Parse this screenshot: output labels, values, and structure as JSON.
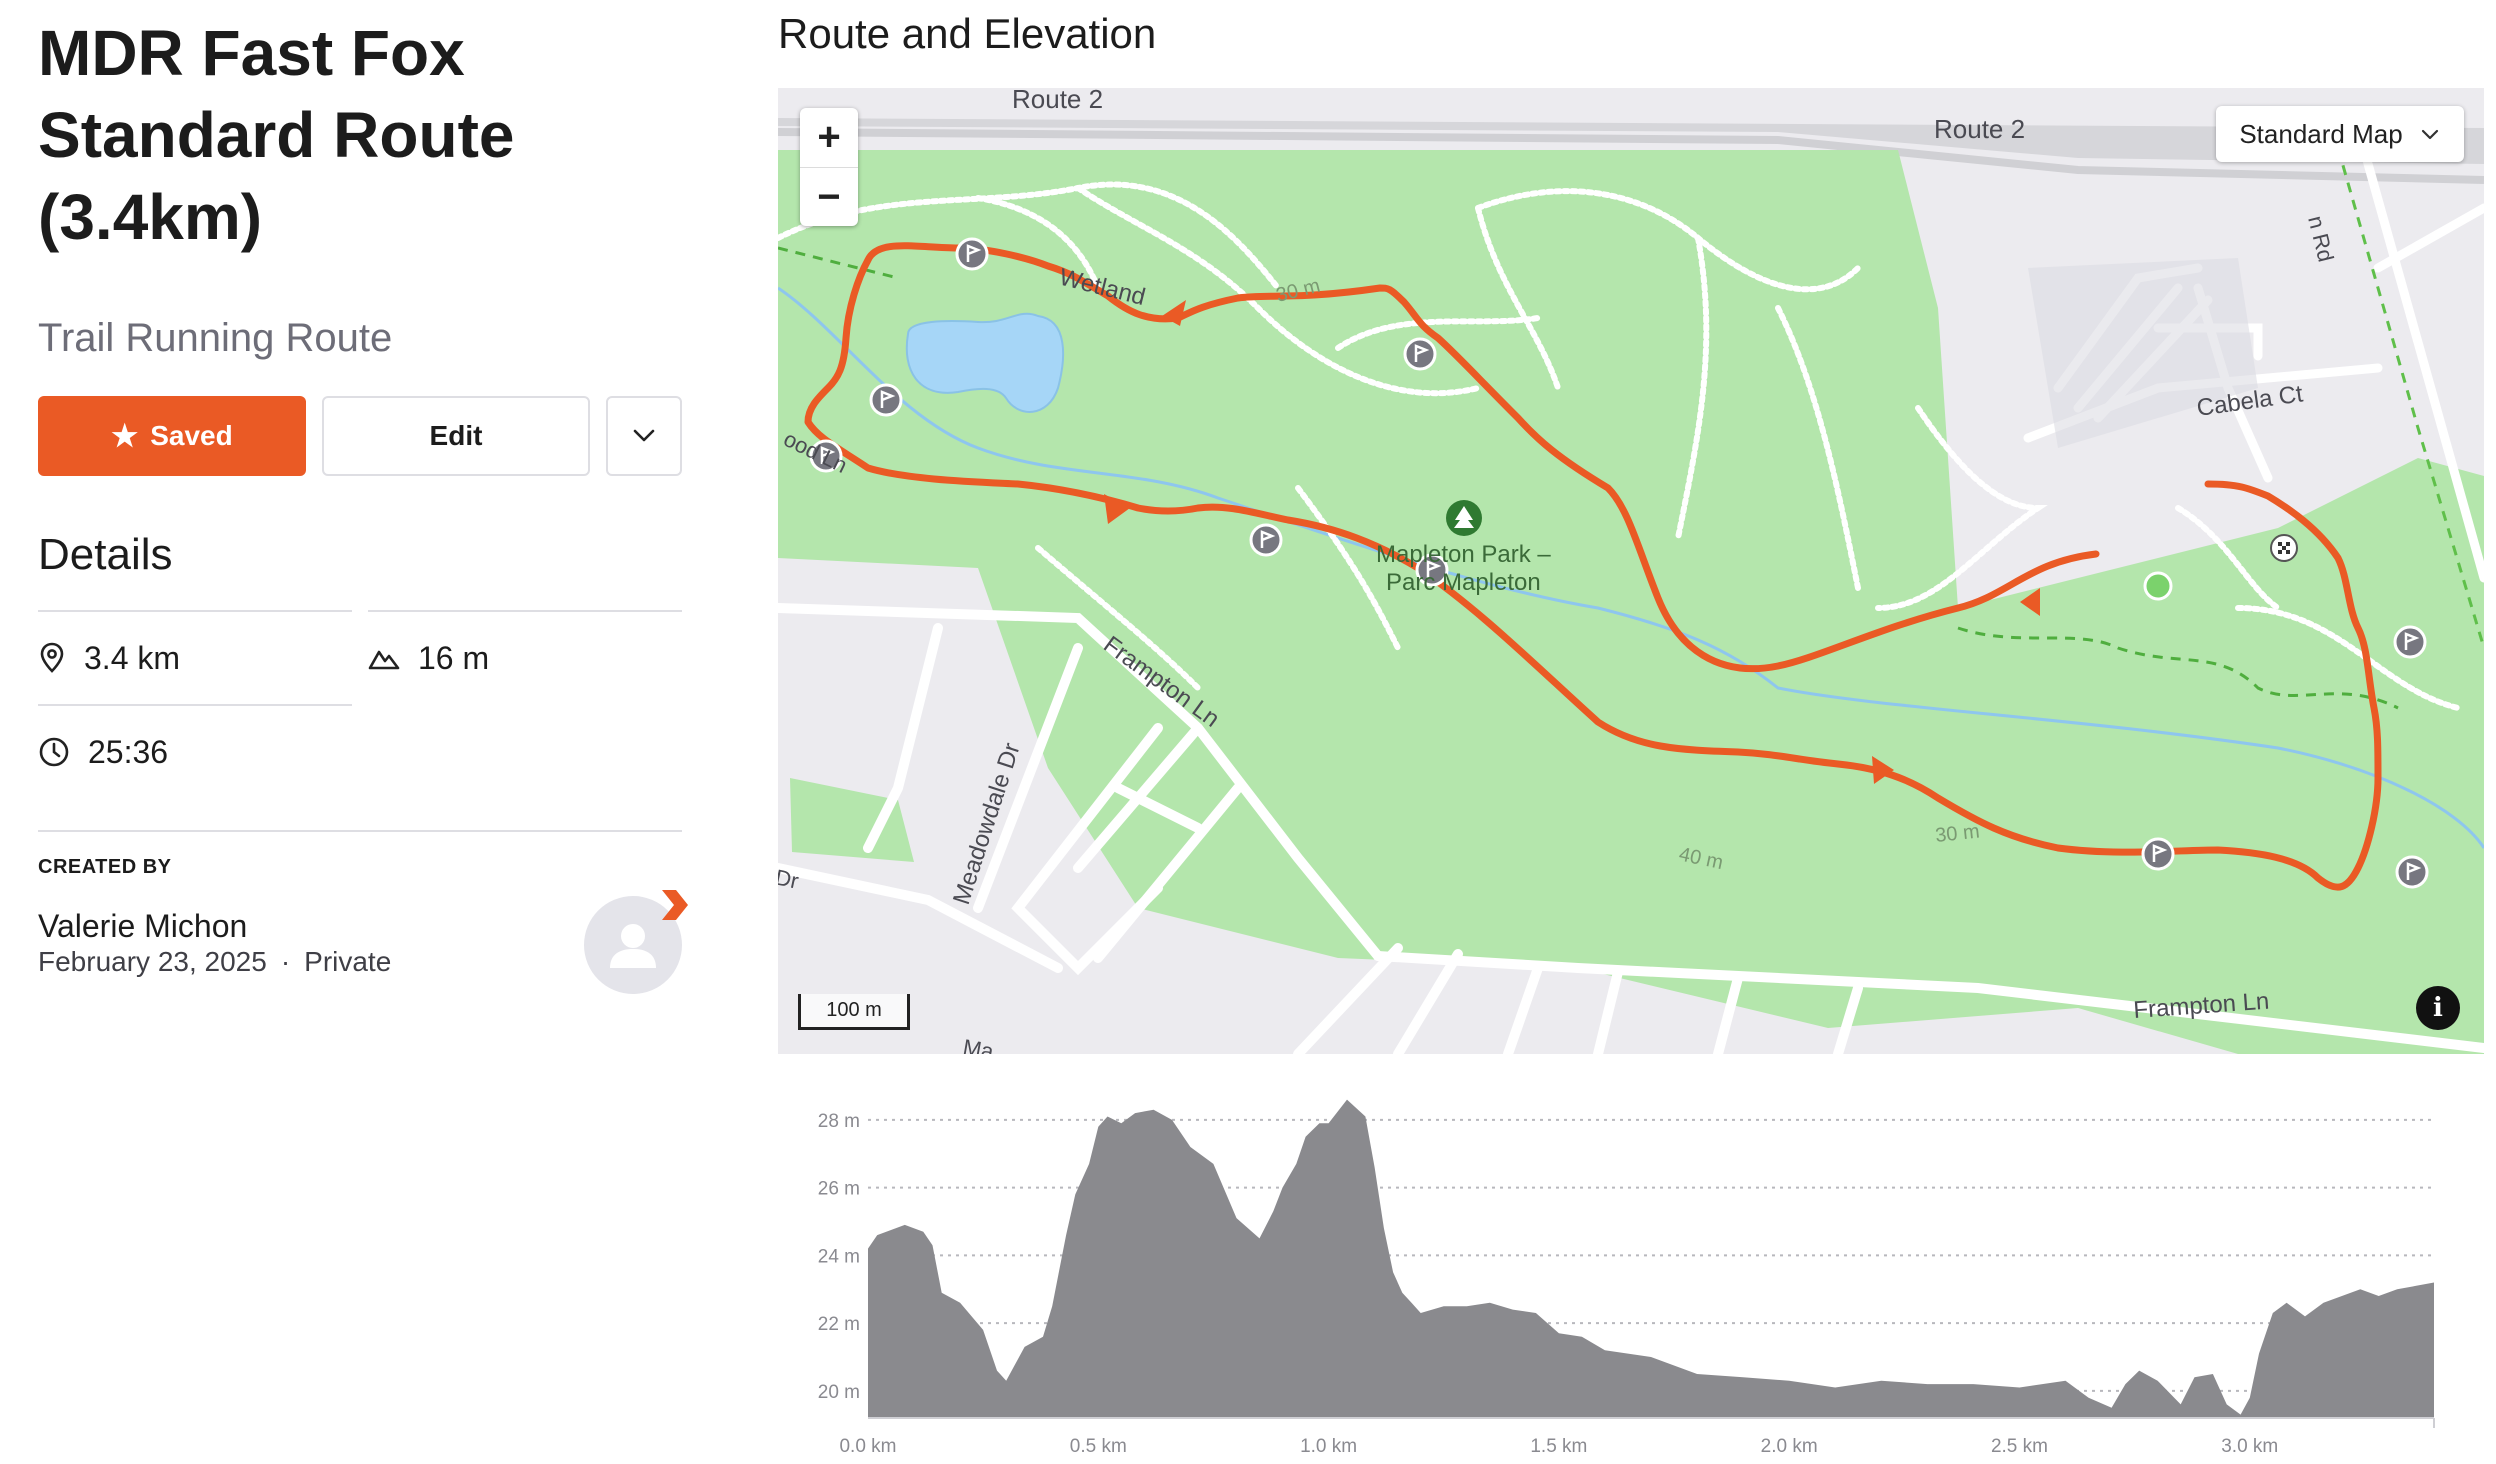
{
  "route": {
    "title": "MDR Fast Fox Standard Route (3.4km)",
    "type": "Trail Running Route"
  },
  "actions": {
    "saved_label": "Saved",
    "edit_label": "Edit",
    "more_icon": "chevron-down-icon"
  },
  "details": {
    "heading": "Details",
    "distance": "3.4 km",
    "elevation_gain": "16 m",
    "time": "25:36"
  },
  "creator": {
    "label": "CREATED BY",
    "name": "Valerie Michon",
    "date": "February 23, 2025",
    "visibility": "Private"
  },
  "map": {
    "heading": "Route and Elevation",
    "map_type": "Standard Map",
    "zoom_in": "+",
    "zoom_out": "−",
    "scale": "100 m",
    "info": "i",
    "labels": {
      "route2a": "Route 2",
      "route2b": "Route 2",
      "wetland": "Wetland",
      "contour30a": "30 m",
      "contour30b": "30 m",
      "contour40": "40 m",
      "cabela": "Cabela Ct",
      "park1": "Mapleton Park –",
      "park2": "Parc Mapleton",
      "frampton1": "Frampton Ln",
      "frampton2": "Frampton Ln",
      "meadowdale": "Meadowdale Dr",
      "wood": "ood Ln",
      "rd": "n Rd",
      "dr": "Dr",
      "ma": "Ma"
    },
    "colors": {
      "route": "#ea5a25",
      "park": "#b4e6ac",
      "water": "#a6d6f7",
      "base": "#ecebef"
    }
  },
  "chart_data": {
    "type": "area",
    "title": "",
    "xlabel": "",
    "ylabel": "",
    "xlim": [
      0,
      3.4
    ],
    "ylim": [
      19.2,
      29
    ],
    "x_ticks": [
      "0.0 km",
      "0.5 km",
      "1.0 km",
      "1.5 km",
      "2.0 km",
      "2.5 km",
      "3.0 km"
    ],
    "y_ticks": [
      "28 m",
      "26 m",
      "24 m",
      "22 m",
      "20 m"
    ],
    "grid": "horizontal dashed",
    "series": [
      {
        "x": [
          0.0,
          0.02,
          0.08,
          0.12,
          0.14,
          0.16,
          0.2,
          0.25,
          0.28,
          0.3,
          0.34,
          0.38,
          0.4,
          0.43,
          0.45,
          0.48,
          0.5,
          0.52,
          0.55,
          0.58,
          0.62,
          0.66,
          0.7,
          0.75,
          0.8,
          0.85,
          0.88,
          0.9,
          0.93,
          0.95,
          0.98,
          1.0,
          1.04,
          1.08,
          1.1,
          1.12,
          1.14,
          1.16,
          1.18,
          1.2,
          1.25,
          1.3,
          1.35,
          1.4,
          1.45,
          1.5,
          1.55,
          1.6,
          1.7,
          1.8,
          1.9,
          2.0,
          2.1,
          2.2,
          2.3,
          2.4,
          2.5,
          2.6,
          2.65,
          2.7,
          2.73,
          2.76,
          2.8,
          2.85,
          2.88,
          2.92,
          2.95,
          2.98,
          3.0,
          3.02,
          3.05,
          3.08,
          3.12,
          3.16,
          3.2,
          3.24,
          3.28,
          3.32,
          3.36,
          3.4
        ],
        "values": [
          24.2,
          24.6,
          24.9,
          24.7,
          24.3,
          22.9,
          22.6,
          21.8,
          20.6,
          20.3,
          21.3,
          21.6,
          22.5,
          24.6,
          25.8,
          26.7,
          27.8,
          28.1,
          27.9,
          28.2,
          28.3,
          28.0,
          27.2,
          26.7,
          25.1,
          24.5,
          25.3,
          26.0,
          26.7,
          27.5,
          27.9,
          27.9,
          28.6,
          28.1,
          26.6,
          24.8,
          23.5,
          22.9,
          22.6,
          22.3,
          22.5,
          22.5,
          22.6,
          22.4,
          22.3,
          21.7,
          21.6,
          21.2,
          21.0,
          20.5,
          20.4,
          20.3,
          20.1,
          20.3,
          20.2,
          20.2,
          20.1,
          20.3,
          19.8,
          19.5,
          20.2,
          20.6,
          20.3,
          19.6,
          20.4,
          20.5,
          19.6,
          19.3,
          19.8,
          21.1,
          22.3,
          22.6,
          22.2,
          22.6,
          22.8,
          23.0,
          22.8,
          23.0,
          23.1,
          23.2
        ]
      }
    ]
  }
}
